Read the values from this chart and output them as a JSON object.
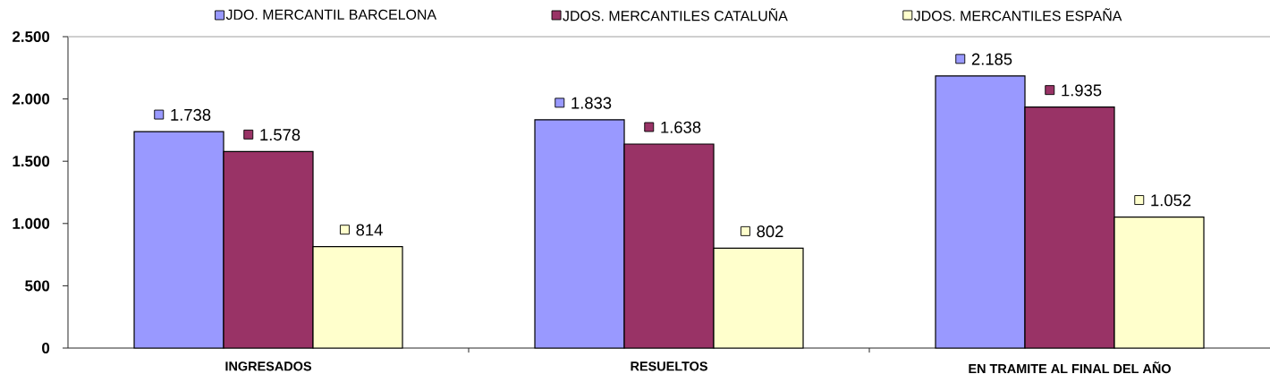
{
  "chart_data": {
    "type": "bar",
    "categories": [
      "INGRESADOS",
      "RESUELTOS",
      "EN TRAMITE AL FINAL DEL AÑO"
    ],
    "series": [
      {
        "name": "JDO. MERCANTIL BARCELONA",
        "color": "#9999ff",
        "values": [
          1738,
          1833,
          2185
        ],
        "value_labels": [
          "1.738",
          "1.833",
          "2.185"
        ]
      },
      {
        "name": "JDOS. MERCANTILES  CATALUÑA",
        "color": "#993366",
        "values": [
          1578,
          1638,
          1935
        ],
        "value_labels": [
          "1.578",
          "1.638",
          "1.935"
        ]
      },
      {
        "name": "JDOS. MERCANTILES  ESPAÑA",
        "color": "#ffffcc",
        "values": [
          814,
          802,
          1052
        ],
        "value_labels": [
          "814",
          "802",
          "1.052"
        ]
      }
    ],
    "ylim": [
      0,
      2500
    ],
    "yticks": [
      0,
      500,
      {
        "value": 1000,
        "label": "1.000"
      },
      {
        "value": 1500,
        "label": "1.500"
      },
      {
        "value": 2000,
        "label": "2.000"
      },
      {
        "value": 2500,
        "label": "2.500"
      }
    ],
    "legend": "top"
  }
}
